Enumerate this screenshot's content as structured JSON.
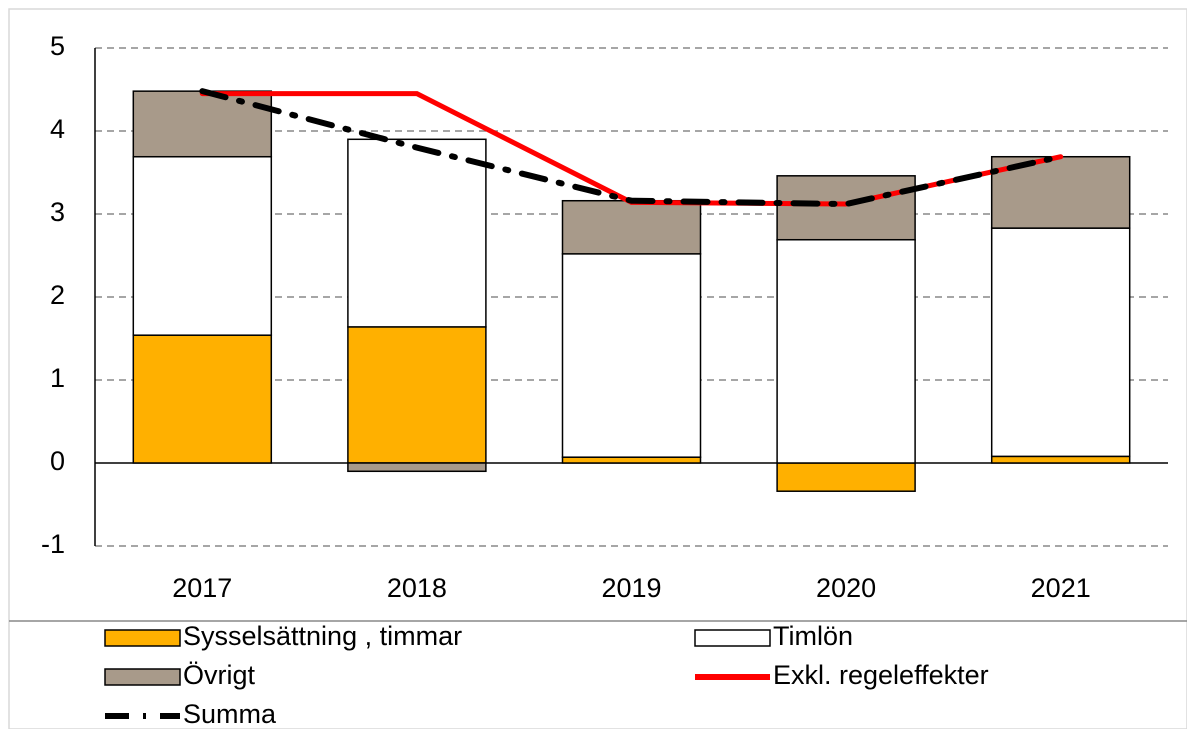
{
  "chart_data": {
    "type": "bar",
    "stacked": true,
    "categories": [
      "2017",
      "2018",
      "2019",
      "2020",
      "2021"
    ],
    "series": [
      {
        "name": "Sysselsättning , timmar",
        "type": "bar",
        "color": "#ffb000",
        "values": [
          1.54,
          1.64,
          0.07,
          -0.34,
          0.08
        ]
      },
      {
        "name": "Timlön",
        "type": "bar",
        "color": "#ffffff",
        "values": [
          2.15,
          2.26,
          2.45,
          2.69,
          2.75
        ]
      },
      {
        "name": "Övrigt",
        "type": "bar",
        "color": "#a89a8a",
        "values": [
          0.79,
          -0.1,
          0.64,
          0.77,
          0.86
        ]
      },
      {
        "name": "Exkl. regeleffekter",
        "type": "line",
        "style": "solid",
        "color": "#ff0000",
        "values": [
          4.45,
          4.45,
          3.14,
          3.12,
          3.69
        ]
      },
      {
        "name": "Summa",
        "type": "line",
        "style": "dashdot",
        "color": "#000000",
        "values": [
          4.48,
          3.8,
          3.16,
          3.12,
          3.69
        ]
      }
    ],
    "ylim": [
      -1,
      5
    ],
    "yticks": [
      -1,
      0,
      1,
      2,
      3,
      4,
      5
    ],
    "grid": true,
    "legend": "bottom"
  }
}
